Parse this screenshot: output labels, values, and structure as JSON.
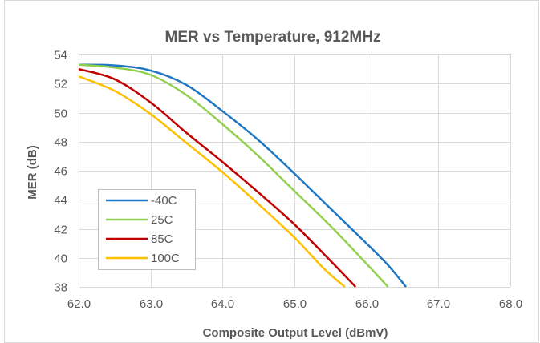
{
  "chart_data": {
    "type": "line",
    "title": "MER vs Temperature, 912MHz",
    "xlabel": "Composite Output Level (dBmV)",
    "ylabel": "MER (dB)",
    "xlim": [
      62.0,
      68.0
    ],
    "ylim": [
      38,
      54
    ],
    "x_ticks": [
      "62.0",
      "63.0",
      "64.0",
      "65.0",
      "66.0",
      "67.0",
      "68.0"
    ],
    "y_ticks": [
      "38",
      "40",
      "42",
      "44",
      "46",
      "48",
      "50",
      "52",
      "54"
    ],
    "grid": true,
    "legend_position": "bottom-left",
    "series": [
      {
        "name": "-40C",
        "color": "#1F77C4",
        "points": [
          [
            62.0,
            53.3
          ],
          [
            62.5,
            53.25
          ],
          [
            63.0,
            52.9
          ],
          [
            63.5,
            51.9
          ],
          [
            64.0,
            50.1
          ],
          [
            64.5,
            48.1
          ],
          [
            65.0,
            45.8
          ],
          [
            65.5,
            43.4
          ],
          [
            66.0,
            41.0
          ],
          [
            66.3,
            39.5
          ],
          [
            66.55,
            38.0
          ]
        ]
      },
      {
        "name": "25C",
        "color": "#92D050",
        "points": [
          [
            62.0,
            53.3
          ],
          [
            62.5,
            53.1
          ],
          [
            63.0,
            52.6
          ],
          [
            63.5,
            51.2
          ],
          [
            64.0,
            49.2
          ],
          [
            64.5,
            47.0
          ],
          [
            65.0,
            44.6
          ],
          [
            65.5,
            42.2
          ],
          [
            66.0,
            39.6
          ],
          [
            66.3,
            38.0
          ]
        ]
      },
      {
        "name": "85C",
        "color": "#C00000",
        "points": [
          [
            62.0,
            53.0
          ],
          [
            62.5,
            52.3
          ],
          [
            63.0,
            50.7
          ],
          [
            63.5,
            48.6
          ],
          [
            64.0,
            46.6
          ],
          [
            64.5,
            44.5
          ],
          [
            65.0,
            42.3
          ],
          [
            65.5,
            39.8
          ],
          [
            65.85,
            38.0
          ]
        ]
      },
      {
        "name": "100C",
        "color": "#FFC000",
        "points": [
          [
            62.0,
            52.5
          ],
          [
            62.5,
            51.5
          ],
          [
            63.0,
            49.9
          ],
          [
            63.5,
            47.9
          ],
          [
            64.0,
            45.9
          ],
          [
            64.5,
            43.7
          ],
          [
            65.0,
            41.4
          ],
          [
            65.4,
            39.3
          ],
          [
            65.7,
            38.0
          ]
        ]
      }
    ]
  }
}
